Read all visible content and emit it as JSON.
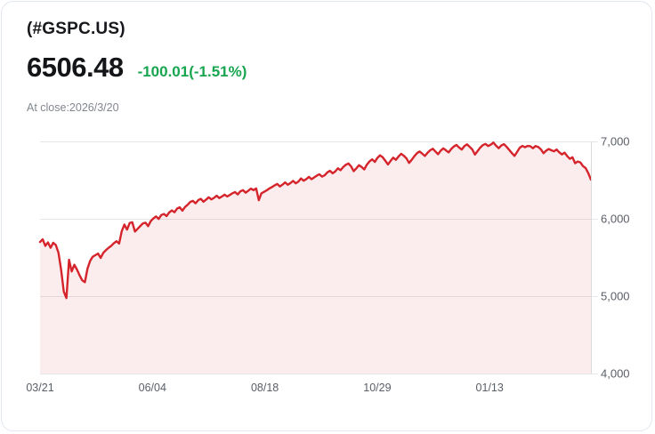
{
  "header": {
    "symbol": "(#GSPC.US)",
    "price": "6506.48",
    "change": "-100.01(-1.51%)",
    "at_close": "At close:2026/3/20"
  },
  "colors": {
    "line_red": "#d5242b",
    "area_fill": "rgba(213,36,43,0.085)",
    "change_green": "#18a550",
    "gridline": "#e5e6e9",
    "axis_line": "#d9dbdf",
    "tick_text": "#5a5e66"
  },
  "chart_data": {
    "type": "area",
    "title": "",
    "xlabel": "",
    "ylabel": "",
    "ylim": [
      4000,
      7000
    ],
    "grid": "horizontal",
    "y_axis_side": "right",
    "y_ticks": [
      {
        "value": 7000,
        "label": "7,000"
      },
      {
        "value": 6000,
        "label": "6,000"
      },
      {
        "value": 5000,
        "label": "5,000"
      },
      {
        "value": 4000,
        "label": "4,000"
      }
    ],
    "x_ticks": [
      "03/21",
      "06/04",
      "08/18",
      "10/29",
      "01/13"
    ],
    "series": [
      {
        "name": "#GSPC.US",
        "values": [
          5700,
          5735,
          5650,
          5695,
          5625,
          5690,
          5660,
          5560,
          5340,
          5060,
          4975,
          5470,
          5320,
          5405,
          5345,
          5270,
          5205,
          5180,
          5355,
          5455,
          5510,
          5530,
          5550,
          5495,
          5560,
          5595,
          5625,
          5650,
          5685,
          5710,
          5680,
          5840,
          5925,
          5860,
          5945,
          5955,
          5835,
          5870,
          5905,
          5940,
          5950,
          5905,
          5970,
          6005,
          6030,
          5998,
          6048,
          6062,
          6035,
          6082,
          6108,
          6085,
          6132,
          6148,
          6105,
          6152,
          6182,
          6218,
          6232,
          6200,
          6240,
          6258,
          6220,
          6248,
          6278,
          6250,
          6270,
          6298,
          6268,
          6288,
          6312,
          6288,
          6308,
          6330,
          6345,
          6315,
          6355,
          6370,
          6338,
          6362,
          6390,
          6370,
          6392,
          6240,
          6330,
          6348,
          6368,
          6392,
          6410,
          6432,
          6450,
          6418,
          6442,
          6470,
          6440,
          6462,
          6490,
          6458,
          6480,
          6522,
          6492,
          6512,
          6542,
          6512,
          6535,
          6558,
          6575,
          6545,
          6562,
          6600,
          6620,
          6588,
          6612,
          6652,
          6628,
          6668,
          6698,
          6715,
          6678,
          6615,
          6652,
          6692,
          6670,
          6638,
          6700,
          6742,
          6768,
          6735,
          6788,
          6820,
          6795,
          6750,
          6702,
          6748,
          6790,
          6762,
          6805,
          6840,
          6815,
          6782,
          6722,
          6762,
          6808,
          6848,
          6870,
          6842,
          6812,
          6852,
          6885,
          6905,
          6870,
          6835,
          6880,
          6910,
          6885,
          6858,
          6902,
          6935,
          6955,
          6920,
          6895,
          6940,
          6962,
          6930,
          6895,
          6830,
          6875,
          6920,
          6952,
          6968,
          6940,
          6958,
          6985,
          6945,
          6912,
          6948,
          6965,
          6930,
          6890,
          6850,
          6812,
          6865,
          6918,
          6942,
          6925,
          6942,
          6938,
          6912,
          6940,
          6928,
          6898,
          6848,
          6880,
          6902,
          6885,
          6872,
          6895,
          6858,
          6832,
          6855,
          6810,
          6775,
          6795,
          6718,
          6740,
          6728,
          6680,
          6655,
          6590,
          6506.48
        ]
      }
    ]
  }
}
